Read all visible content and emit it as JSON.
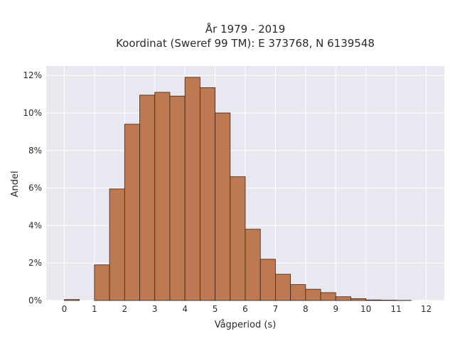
{
  "chart_data": {
    "type": "bar",
    "title_lines": [
      "År 1979 - 2019",
      "Koordinat (Sweref 99 TM): E 373768, N 6139548"
    ],
    "xlabel": "Vågperiod (s)",
    "ylabel": "Andel",
    "xlim": [
      -0.6,
      12.6
    ],
    "ylim": [
      0,
      12.5
    ],
    "x_ticks": [
      0,
      1,
      2,
      3,
      4,
      5,
      6,
      7,
      8,
      9,
      10,
      11,
      12
    ],
    "y_ticks": [
      0,
      2,
      4,
      6,
      8,
      10,
      12
    ],
    "y_tick_labels": [
      "0%",
      "2%",
      "4%",
      "6%",
      "8%",
      "10%",
      "12%"
    ],
    "bin_width": 0.5,
    "bins": [
      {
        "x0": 0.0,
        "value": 0.05
      },
      {
        "x0": 1.0,
        "value": 1.9
      },
      {
        "x0": 1.5,
        "value": 5.95
      },
      {
        "x0": 2.0,
        "value": 9.4
      },
      {
        "x0": 2.5,
        "value": 10.95
      },
      {
        "x0": 3.0,
        "value": 11.1
      },
      {
        "x0": 3.5,
        "value": 10.9
      },
      {
        "x0": 4.0,
        "value": 11.9
      },
      {
        "x0": 4.5,
        "value": 11.35
      },
      {
        "x0": 5.0,
        "value": 10.0
      },
      {
        "x0": 5.5,
        "value": 6.6
      },
      {
        "x0": 6.0,
        "value": 3.8
      },
      {
        "x0": 6.5,
        "value": 2.2
      },
      {
        "x0": 7.0,
        "value": 1.4
      },
      {
        "x0": 7.5,
        "value": 0.85
      },
      {
        "x0": 8.0,
        "value": 0.6
      },
      {
        "x0": 8.5,
        "value": 0.42
      },
      {
        "x0": 9.0,
        "value": 0.2
      },
      {
        "x0": 9.5,
        "value": 0.1
      },
      {
        "x0": 10.0,
        "value": 0.03
      },
      {
        "x0": 10.5,
        "value": 0.02
      },
      {
        "x0": 11.0,
        "value": 0.01
      }
    ],
    "grid": true,
    "bar_color": "#bc7952",
    "bar_edge_color": "#3d2418",
    "plot_bg_color": "#e8e8f0",
    "grid_color": "#ffffff"
  }
}
